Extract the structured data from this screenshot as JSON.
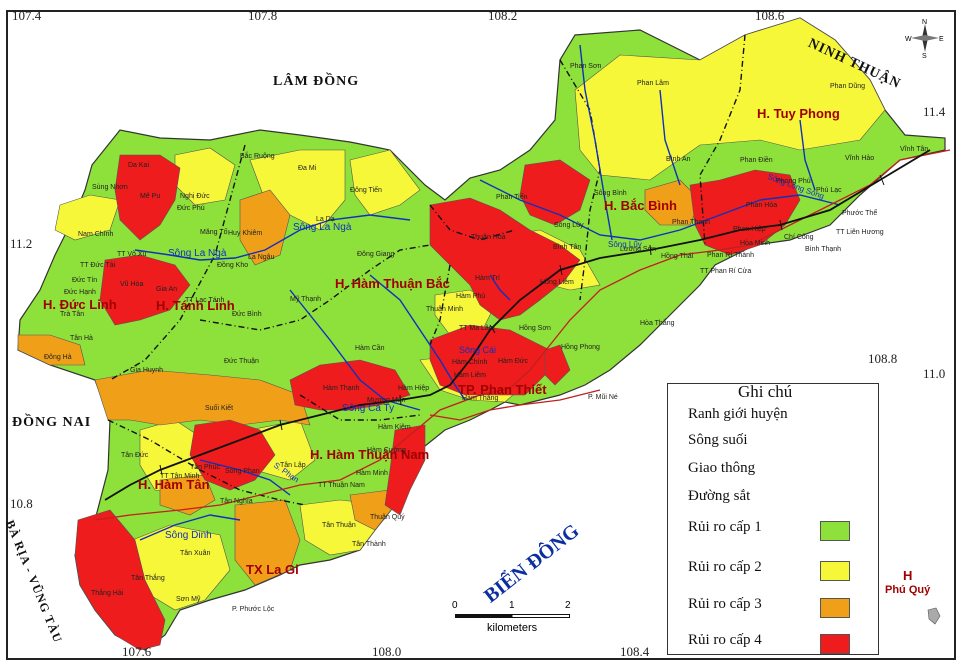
{
  "coordinates": {
    "top": [
      "107.4",
      "107.8",
      "108.2",
      "108.6"
    ],
    "bottom": [
      "107.6",
      "108.0",
      "108.4"
    ],
    "left": [
      "11.2",
      "10.8"
    ],
    "right": [
      "11.4",
      "11.0"
    ],
    "inner": [
      "108.8"
    ]
  },
  "neighbors": {
    "lam_dong": "LÂM ĐỒNG",
    "ninh_thuan": "NINH THUẬN",
    "dong_nai": "ĐỒNG NAI",
    "ba_ria": "BÀ RỊA - VŨNG TÀU",
    "sea": "BIỂN ĐÔNG"
  },
  "districts": {
    "tuy_phong": "H. Tuy Phong",
    "bac_binh": "H. Bắc Bình",
    "ham_thuan_bac": "H. Hàm Thuận Bắc",
    "duc_linh": "H. Đức Linh",
    "tanh_linh": "H. Tánh Linh",
    "phan_thiet": "TP. Phan Thiết",
    "ham_thuan_nam": "H. Hàm Thuận Nam",
    "ham_tan": "H. Hàm Tân",
    "la_gi": "TX La Gi",
    "phu_quy_prefix": "H",
    "phu_quy": "Phú Quý"
  },
  "communes": {
    "phan_son": "Phan Sơn",
    "phan_lam": "Phan Lâm",
    "phan_dung": "Phan Dũng",
    "binh_an": "Bình An",
    "phan_dien": "Phan Điền",
    "vinh_hao": "Vĩnh Hảo",
    "vinh_tan": "Vĩnh Tân",
    "phong_phu": "Phong Phú",
    "phu_lac": "Phú Lạc",
    "phuoc_the": "Phước Thể",
    "lien_huong": "TT Liên Hương",
    "chi_cong": "Chí Công",
    "binh_thanh": "Bình Thạnh",
    "phan_hoa": "Phan Hòa",
    "phan_hiep": "Phan Hiệp",
    "hoa_minh": "Hòa Minh",
    "phan_ri_thanh": "Phan Rí Thành",
    "phan_ri_cua": "TT Phan Rí Cửa",
    "phan_thanh": "Phan Thanh",
    "hong_thai": "Hồng Thái",
    "song_binh": "Sông Bình",
    "song_luy": "Sông Lũy",
    "phan_tien": "Phan Tiến",
    "binh_tan": "Bình Tân",
    "luong_son": "Lương Sơn",
    "hong_phong": "Hồng Phong",
    "hoa_thang": "Hòa Thắng",
    "thuan_hoa": "Thuận Hòa",
    "ham_tri": "Hàm Trí",
    "hong_liem": "Hồng Liêm",
    "ham_phu": "Hàm Phú",
    "thuan_minh": "Thuận Minh",
    "ma_lam": "TT Ma Lâm",
    "hong_son": "Hồng Sơn",
    "ham_chinh": "Hàm Chính",
    "ham_duc": "Hàm Đức",
    "ham_liem": "Hàm Liêm",
    "ham_thang": "Hàm Thắng",
    "ham_hiep": "Hàm Hiệp",
    "mui_ne": "P. Mũi Né",
    "dong_giang": "Đông Giang",
    "dong_tien": "Đông Tiến",
    "da_mi": "Đa Mi",
    "la_da": "La Dạ",
    "my_thanh": "Mỹ Thạnh",
    "ham_can": "Hàm Cần",
    "ham_thanh": "Hàm Thạnh",
    "muong_man": "Mương Mán",
    "ham_kiem": "Hàm Kiệm",
    "ham_cuong": "Hàm Cường",
    "ham_minh": "Hàm Minh",
    "thuan_nam": "TT Thuận Nam",
    "tan_lap": "Tân Lập",
    "tan_thuan": "Tân Thuận",
    "thuan_quy": "Thuận Quý",
    "tan_thanh": "Tân Thành",
    "da_kai": "Da Kai",
    "me_pu": "Mê Pu",
    "sung_nhon": "Sùng Nhơn",
    "nghi_duc": "Nghị Đức",
    "duc_phu": "Đức Phú",
    "bac_ruong": "Bắc Ruộng",
    "nam_chinh": "Nam Chính",
    "mang_to": "Măng Tố",
    "huy_khiem": "Huy Khiêm",
    "duc_tai": "TT Đức Tài",
    "vo_xu": "TT Võ Xu",
    "dong_kho": "Đồng Kho",
    "la_ngau": "La Ngâu",
    "duc_tin": "Đức Tín",
    "vu_hoa": "Vũ Hòa",
    "gia_an": "Gia An",
    "lac_tanh": "TT Lạc Tánh",
    "tra_tan": "Trà Tân",
    "duc_hanh": "Đức Hạnh",
    "duc_binh": "Đức Bình",
    "tan_ha": "Tân Hà",
    "dong_ha": "Đông Hà",
    "gia_huynh": "Gia Huynh",
    "duc_thuan": "Đức Thuận",
    "suoi_kiet": "Suối Kiết",
    "tan_duc": "Tân Đức",
    "tan_phuc": "Tân Phúc",
    "tan_minh": "TT Tân Minh",
    "song_phan": "Sông Phan",
    "tan_nghia": "Tân Nghĩa",
    "tan_xuan": "Tân Xuân",
    "tan_thang": "Tân Thắng",
    "thang_hai": "Thắng Hải",
    "son_my": "Sơn Mỹ",
    "phuoc_loc": "P. Phước Lộc"
  },
  "rivers": {
    "la_nga_1": "Sông La Ngà",
    "la_nga_2": "Sông La Ngà",
    "luy": "Sông Lũy",
    "long_song": "Sông Lòng Sông",
    "cai": "Sông Cái",
    "cau_ty": "Sông Cà Ty",
    "phan": "S. Phan",
    "dinh": "Sông Dinh"
  },
  "legend": {
    "title": "Ghi chú",
    "items": [
      {
        "label": "Ranh giới huyện",
        "kind": "boundary"
      },
      {
        "label": "Sông suối",
        "kind": "river"
      },
      {
        "label": "Giao thông",
        "kind": "road"
      },
      {
        "label": "Đường sắt",
        "kind": "rail"
      },
      {
        "label": "Rủi ro cấp 1",
        "kind": "swatch",
        "color": "#8ee03a"
      },
      {
        "label": "Rủi ro cấp 2",
        "kind": "swatch",
        "color": "#f7f73a"
      },
      {
        "label": "Rủi ro cấp 3",
        "kind": "swatch",
        "color": "#f0a018"
      },
      {
        "label": "Rủi ro cấp 4",
        "kind": "swatch",
        "color": "#ee1c1c"
      }
    ]
  },
  "scale": {
    "ticks": [
      "0",
      "1",
      "2"
    ],
    "unit": "kilometers"
  },
  "compass": {
    "n": "N",
    "s": "S",
    "e": "E",
    "w": "W"
  },
  "colors": {
    "level1": "#8ee03a",
    "level2": "#f7f73a",
    "level3": "#f0a018",
    "level4": "#ee1c1c",
    "river": "#1030c0",
    "road": "#c02020",
    "boundary": "#111111"
  }
}
